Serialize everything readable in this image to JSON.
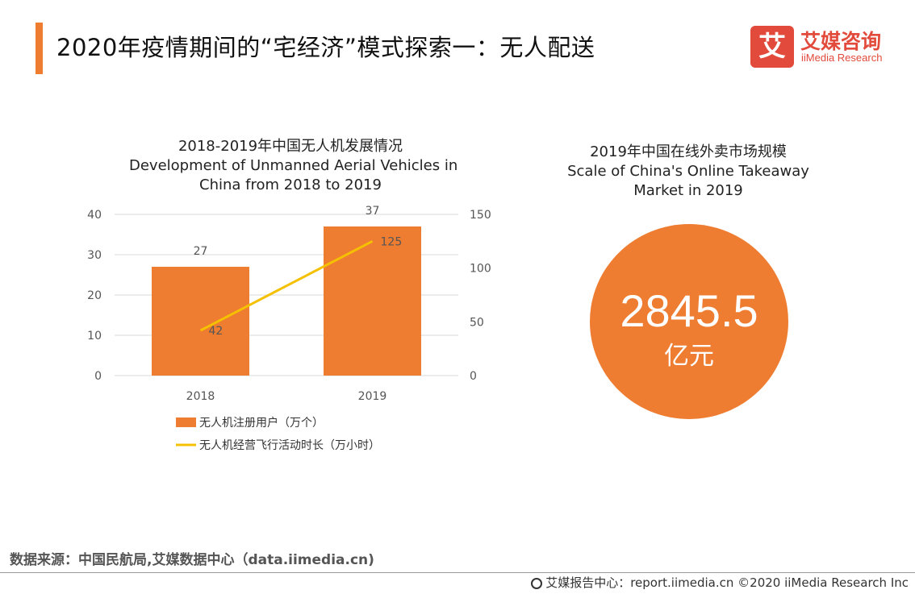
{
  "header": {
    "title": "2020年疫情期间的“宅经济”模式探索一：无人配送",
    "accent_color": "#ee7d31"
  },
  "logo": {
    "mark": "艾",
    "cn": "艾媒咨询",
    "en": "iiMedia Research",
    "color": "#e24a3b"
  },
  "chart_data": [
    {
      "type": "bar",
      "title": "2018-2019年中国无人机发展情况",
      "subtitle_line1": "Development of Unmanned Aerial Vehicles in",
      "subtitle_line2": "China from 2018 to 2019",
      "categories": [
        "2018",
        "2019"
      ],
      "series": [
        {
          "name": "无人机注册用户（万个）",
          "type": "bar",
          "axis": "left",
          "values": [
            27,
            37
          ],
          "color": "#ee7d31"
        },
        {
          "name": "无人机经营飞行活动时长（万小时）",
          "type": "line",
          "axis": "right",
          "values": [
            42,
            125
          ],
          "color": "#f5c000"
        }
      ],
      "ylim_left": [
        0,
        40
      ],
      "yticks_left": [
        0,
        10,
        20,
        30,
        40
      ],
      "ylim_right": [
        0,
        150
      ],
      "yticks_right": [
        0,
        50,
        100,
        150
      ],
      "grid": true,
      "legend": "bottom"
    }
  ],
  "market": {
    "title_cn": "2019年中国在线外卖市场规模",
    "title_en_line1": "Scale of China's Online Takeaway",
    "title_en_line2": "Market in 2019",
    "value": "2845.5",
    "unit": "亿元",
    "color": "#ee7d31"
  },
  "source": "数据来源：中国民航局,艾媒数据中心（data.iimedia.cn)",
  "footer": "艾媒报告中心：report.iimedia.cn  ©2020  iiMedia Research  Inc"
}
